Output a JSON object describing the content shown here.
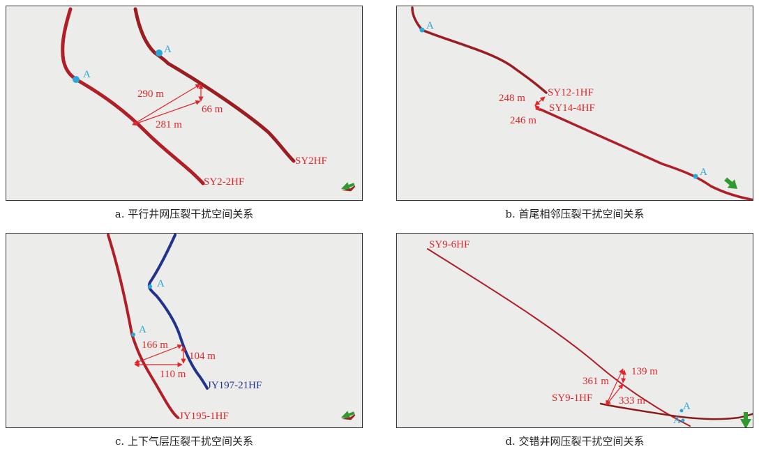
{
  "colors": {
    "well_red": "#c0212a",
    "well_dark_red": "#7a1a1a",
    "well_blue": "#22348a",
    "label_red": "#e0262b",
    "marker_blue": "#2aa7d8",
    "arrow_green": "#2e9b2e",
    "panel_bg": "#ececea"
  },
  "panels": {
    "a": {
      "caption": "a. 平行井网压裂干扰空间关系",
      "marker_a1": "A",
      "marker_a2": "A",
      "well_1": "SY2HF",
      "well_2": "SY2-2HF",
      "dist_1": "290 m",
      "dist_2": "66 m",
      "dist_3": "281 m"
    },
    "b": {
      "caption": "b. 首尾相邻压裂干扰空间关系",
      "marker_a1": "A",
      "marker_a2": "A",
      "well_1": "SY12-1HF",
      "well_2": "SY14-4HF",
      "dist_1": "248 m",
      "dist_2": "246 m"
    },
    "c": {
      "caption": "c. 上下气层压裂干扰空间关系",
      "marker_a1": "A",
      "marker_a2": "A",
      "well_1": "JY197-21HF",
      "well_2": "JY195-1HF",
      "dist_1": "166 m",
      "dist_2": "104 m",
      "dist_3": "110 m"
    },
    "d": {
      "caption": "d. 交错井网压裂干扰空间关系",
      "marker_a1": "A",
      "marker_a2": "A",
      "well_1": "SY9-6HF",
      "well_2": "SY9-1HF",
      "dist_1": "361 m",
      "dist_2": "139 m",
      "dist_3": "333 m"
    }
  }
}
